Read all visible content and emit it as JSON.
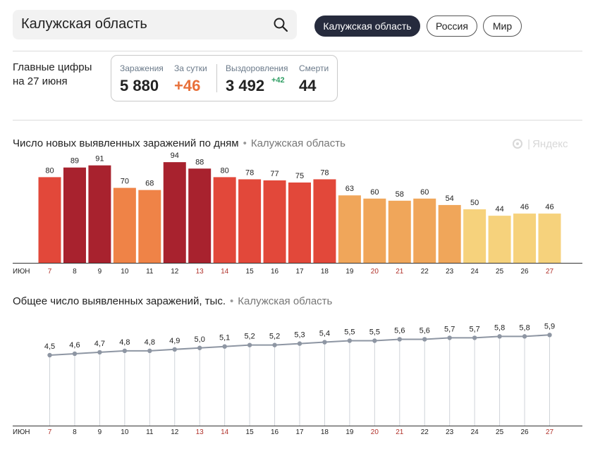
{
  "search": {
    "value": "Калужская область"
  },
  "region_tabs": [
    {
      "label": "Калужская область",
      "active": true
    },
    {
      "label": "Россия",
      "active": false
    },
    {
      "label": "Мир",
      "active": false
    }
  ],
  "headline": {
    "line1": "Главные цифры",
    "line2": "на 27 июня"
  },
  "stats": {
    "infections_label": "Заражения",
    "infections_value": "5 880",
    "daily_label": "За сутки",
    "daily_value": "+46",
    "recovered_label": "Выздоровления",
    "recovered_value": "3 492",
    "recovered_delta": "+42",
    "deaths_label": "Смерти",
    "deaths_value": "44"
  },
  "logo_text": "Яндекс",
  "colors": {
    "bar_dark": "#a8222e",
    "bar_red": "#e2483a",
    "bar_orange": "#ef8347",
    "bar_light_orange": "#f0a65a",
    "bar_yellow": "#f6d27c",
    "line": "#8e96a3",
    "weekend": "#b1322b"
  },
  "chart_data": [
    {
      "type": "bar",
      "title": "Число новых выявленных заражений по дням",
      "region": "Калужская область",
      "month_label": "ИЮН",
      "categories": [
        "7",
        "8",
        "9",
        "10",
        "11",
        "12",
        "13",
        "14",
        "15",
        "16",
        "17",
        "18",
        "19",
        "20",
        "21",
        "22",
        "23",
        "24",
        "25",
        "26",
        "27"
      ],
      "values": [
        80,
        89,
        91,
        70,
        68,
        94,
        88,
        80,
        78,
        77,
        75,
        78,
        63,
        60,
        58,
        60,
        54,
        50,
        44,
        46,
        46
      ],
      "weekend_categories": [
        "7",
        "13",
        "14",
        "20",
        "21",
        "27"
      ],
      "ylim": [
        0,
        100
      ],
      "grid": false,
      "legend": "none"
    },
    {
      "type": "line",
      "title": "Общее число выявленных заражений, тыс.",
      "region": "Калужская область",
      "month_label": "ИЮН",
      "categories": [
        "7",
        "8",
        "9",
        "10",
        "11",
        "12",
        "13",
        "14",
        "15",
        "16",
        "17",
        "18",
        "19",
        "20",
        "21",
        "22",
        "23",
        "24",
        "25",
        "26",
        "27"
      ],
      "values": [
        4.5,
        4.6,
        4.7,
        4.8,
        4.8,
        4.9,
        5.0,
        5.1,
        5.2,
        5.2,
        5.3,
        5.4,
        5.5,
        5.5,
        5.6,
        5.6,
        5.7,
        5.7,
        5.8,
        5.8,
        5.9
      ],
      "value_labels": [
        "4,5",
        "4,6",
        "4,7",
        "4,8",
        "4,8",
        "4,9",
        "5,0",
        "5,1",
        "5,2",
        "5,2",
        "5,3",
        "5,4",
        "5,5",
        "5,5",
        "5,6",
        "5,6",
        "5,7",
        "5,7",
        "5,8",
        "5,8",
        "5,9"
      ],
      "weekend_categories": [
        "7",
        "13",
        "14",
        "20",
        "21",
        "27"
      ],
      "grid": "vertical-drop-lines",
      "legend": "none"
    }
  ]
}
